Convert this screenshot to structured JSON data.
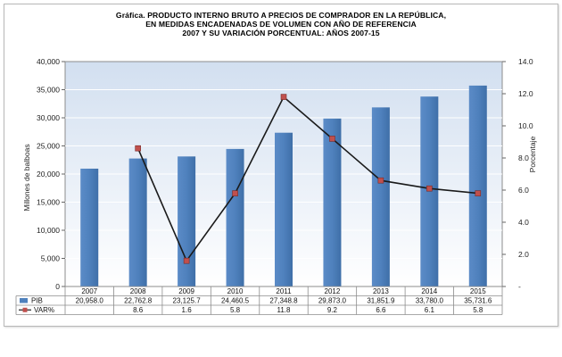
{
  "chart_data": {
    "type": "bar",
    "title": [
      "Gráfica. PRODUCTO INTERNO BRUTO A PRECIOS DE COMPRADOR EN LA REPÚBLICA,",
      "EN MEDIDAS ENCADENADAS DE VOLUMEN CON AÑO DE REFERENCIA",
      "2007 Y SU VARIACIÓN PORCENTUAL: AÑOS 2007-15"
    ],
    "ylabel": "Millones de balboas",
    "y2label": "Porcentaje",
    "categories": [
      "2007",
      "2008",
      "2009",
      "2010",
      "2011",
      "2012",
      "2013",
      "2014",
      "2015"
    ],
    "ylim": [
      0,
      40000
    ],
    "y2lim": [
      0,
      14
    ],
    "yticks": [
      "0",
      "5,000",
      "10,000",
      "15,000",
      "20,000",
      "25,000",
      "30,000",
      "35,000",
      "40,000"
    ],
    "y2ticks": [
      "-",
      "2.0",
      "4.0",
      "6.0",
      "8.0",
      "10.0",
      "12.0",
      "14.0"
    ],
    "series": [
      {
        "name": "PIB",
        "type": "bar",
        "color": "#4f81bd",
        "values": [
          20958.0,
          22762.8,
          23125.7,
          24460.5,
          27348.8,
          29873.0,
          31851.9,
          33780.0,
          35731.6
        ],
        "labels": [
          "20,958.0",
          "22,762.8",
          "23,125.7",
          "24,460.5",
          "27,348.8",
          "29,873.0",
          "31,851.9",
          "33,780.0",
          "35,731.6"
        ]
      },
      {
        "name": "VAR%",
        "type": "line",
        "axis": "secondary",
        "color": "#1a1a1a",
        "marker_color": "#c0504d",
        "values": [
          null,
          8.6,
          1.6,
          5.8,
          11.8,
          9.2,
          6.6,
          6.1,
          5.8
        ],
        "labels": [
          "",
          "8.6",
          "1.6",
          "5.8",
          "11.8",
          "9.2",
          "6.6",
          "6.1",
          "5.8"
        ]
      }
    ],
    "grid": true,
    "legend": "data-table"
  }
}
